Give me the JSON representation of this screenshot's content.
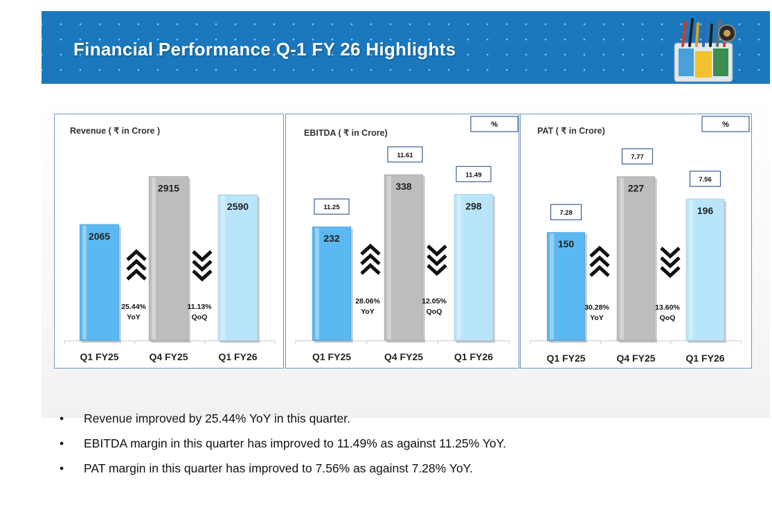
{
  "header": {
    "title": "Financial Performance Q-1 FY 26 Highlights",
    "logo_icon": "cables-product-logo-icon"
  },
  "colors": {
    "banner": "#1b78bd",
    "q1fy25": "#5bb8f0",
    "q4fy25": "#bdbdbd",
    "q1fy26": "#b9e5fb",
    "panel_border": "#6a94c4"
  },
  "chart_data": [
    {
      "type": "bar",
      "title": "Revenue ( ₹ in Crore )",
      "categories": [
        "Q1 FY25",
        "Q4 FY25",
        "Q1 FY26"
      ],
      "values": [
        2065,
        2915,
        2590
      ],
      "ylim": [
        0,
        3400
      ],
      "margin_box_label": null,
      "margins": null,
      "arrows": [
        {
          "direction": "up",
          "pct": "25.44%",
          "label": "YoY"
        },
        {
          "direction": "down",
          "pct": "11.13%",
          "label": "QoQ"
        }
      ]
    },
    {
      "type": "bar",
      "title": "EBITDA ( ₹ in Crore)",
      "categories": [
        "Q1 FY25",
        "Q4 FY25",
        "Q1 FY26"
      ],
      "values": [
        232,
        338,
        298
      ],
      "ylim": [
        0,
        390
      ],
      "margin_box_label": "%",
      "margins": [
        "11.25",
        "11.61",
        "11.49"
      ],
      "arrows": [
        {
          "direction": "up",
          "pct": "28.06%",
          "label": "YoY"
        },
        {
          "direction": "down",
          "pct": "12.05%",
          "label": "QoQ"
        }
      ]
    },
    {
      "type": "bar",
      "title": "PAT ( ₹ in Crore)",
      "categories": [
        "Q1 FY25",
        "Q4 FY25",
        "Q1 FY26"
      ],
      "values": [
        150,
        227,
        196
      ],
      "ylim": [
        0,
        265
      ],
      "margin_box_label": "%",
      "margins": [
        "7.28",
        "7.77",
        "7.56"
      ],
      "arrows": [
        {
          "direction": "up",
          "pct": "30.28%",
          "label": "YoY"
        },
        {
          "direction": "down",
          "pct": "13.60%",
          "label": "QoQ"
        }
      ]
    }
  ],
  "bullets": [
    {
      "symbol": "•",
      "text": "Revenue improved by 25.44% YoY in this quarter."
    },
    {
      "symbol": "•",
      "text": "EBITDA margin in this quarter has improved to 11.49% as against 11.25% YoY."
    },
    {
      "symbol": "•",
      "text": "PAT margin in this quarter has improved to 7.56% as against 7.28% YoY."
    }
  ]
}
